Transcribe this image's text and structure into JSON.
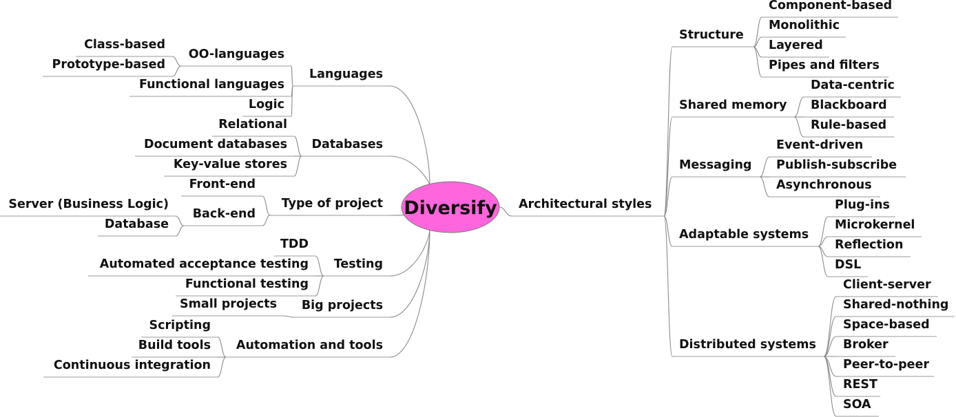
{
  "root": {
    "label": "Diversify",
    "fill": "#ff66dd"
  },
  "left": [
    {
      "label": "Languages",
      "children": [
        {
          "label": "OO-languages",
          "children": [
            {
              "label": "Class-based"
            },
            {
              "label": "Prototype-based"
            }
          ]
        },
        {
          "label": "Functional languages"
        },
        {
          "label": "Logic"
        }
      ]
    },
    {
      "label": "Databases",
      "children": [
        {
          "label": "Relational"
        },
        {
          "label": "Document databases"
        },
        {
          "label": "Key-value stores"
        }
      ]
    },
    {
      "label": "Type of project",
      "children": [
        {
          "label": "Front-end"
        },
        {
          "label": "Back-end",
          "children": [
            {
              "label": "Server (Business Logic)"
            },
            {
              "label": "Database"
            }
          ]
        }
      ]
    },
    {
      "label": "Testing",
      "children": [
        {
          "label": "TDD"
        },
        {
          "label": "Automated acceptance testing"
        },
        {
          "label": "Functional testing"
        }
      ]
    },
    {
      "label": "Big projects",
      "children": [
        {
          "label": "Small projects"
        }
      ]
    },
    {
      "label": "Automation and tools",
      "children": [
        {
          "label": "Scripting"
        },
        {
          "label": "Build tools"
        },
        {
          "label": "Continuous integration"
        }
      ]
    }
  ],
  "right": [
    {
      "label": "Architectural styles",
      "children": [
        {
          "label": "Structure",
          "children": [
            {
              "label": "Component-based"
            },
            {
              "label": "Monolithic"
            },
            {
              "label": "Layered"
            },
            {
              "label": "Pipes and filters"
            }
          ]
        },
        {
          "label": "Shared memory",
          "children": [
            {
              "label": "Data-centric"
            },
            {
              "label": "Blackboard"
            },
            {
              "label": "Rule-based"
            }
          ]
        },
        {
          "label": "Messaging",
          "children": [
            {
              "label": "Event-driven"
            },
            {
              "label": "Publish-subscribe"
            },
            {
              "label": "Asynchronous"
            }
          ]
        },
        {
          "label": "Adaptable systems",
          "children": [
            {
              "label": "Plug-ins"
            },
            {
              "label": "Microkernel"
            },
            {
              "label": "Reflection"
            },
            {
              "label": "DSL"
            }
          ]
        },
        {
          "label": "Distributed systems",
          "children": [
            {
              "label": "Client-server"
            },
            {
              "label": "Shared-nothing"
            },
            {
              "label": "Space-based"
            },
            {
              "label": "Broker"
            },
            {
              "label": "Peer-to-peer"
            },
            {
              "label": "REST"
            },
            {
              "label": "SOA"
            }
          ]
        }
      ]
    }
  ]
}
